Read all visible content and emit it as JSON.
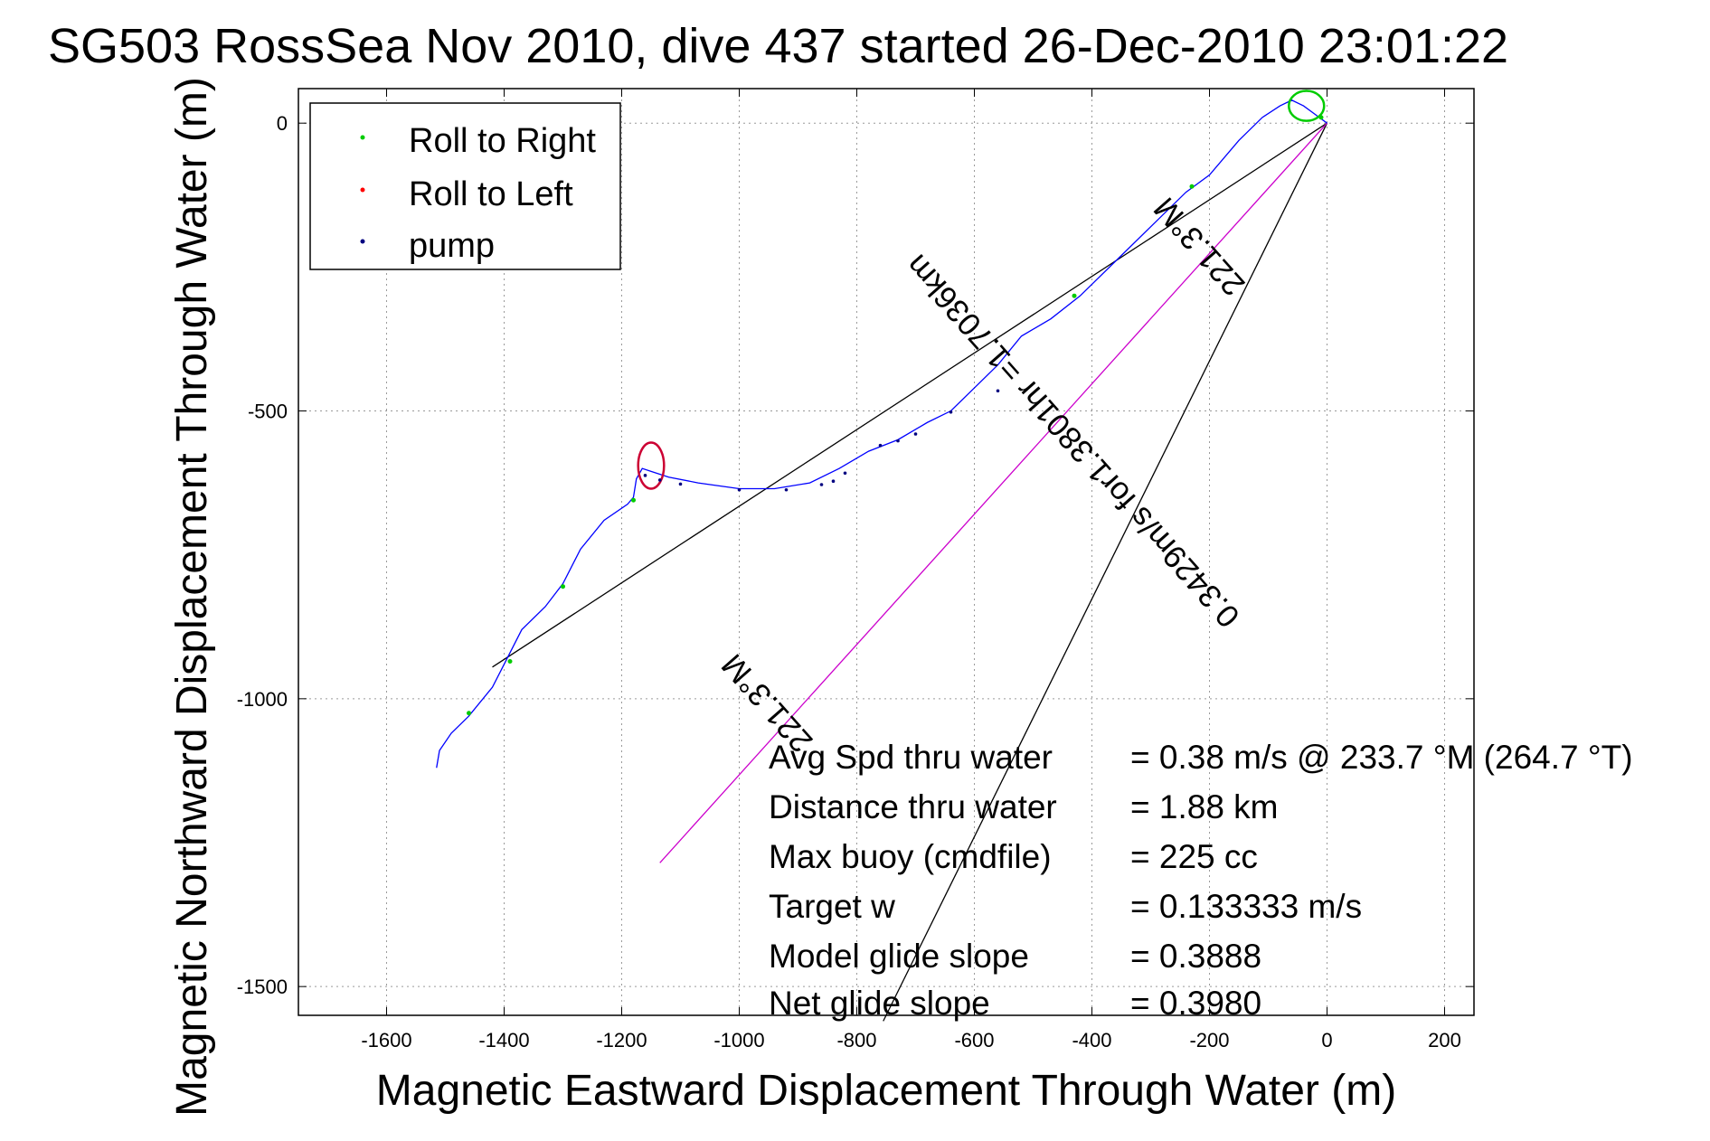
{
  "title": "SG503 RossSea Nov 2010, dive 437 started 26-Dec-2010 23:01:22",
  "chart_data": {
    "type": "line",
    "xlabel": "Magnetic Eastward Displacement Through Water (m)",
    "ylabel": "Magnetic Northward Displacement Through Water (m)",
    "xlim": [
      -1750,
      250
    ],
    "ylim": [
      -1550,
      60
    ],
    "xticks": [
      -1600,
      -1400,
      -1200,
      -1000,
      -800,
      -600,
      -400,
      -200,
      0,
      200
    ],
    "yticks": [
      0,
      -500,
      -1000,
      -1500
    ],
    "grid": true,
    "legend_position": "top-left",
    "legend": [
      {
        "label": "Roll to Right",
        "color": "#00cc00"
      },
      {
        "label": "Roll to Left",
        "color": "#ff0000"
      },
      {
        "label": "pump",
        "color": "#000080"
      }
    ],
    "track": {
      "color": "#0000ff",
      "points": [
        [
          0,
          0
        ],
        [
          -20,
          15
        ],
        [
          -40,
          30
        ],
        [
          -60,
          40
        ],
        [
          -80,
          30
        ],
        [
          -110,
          10
        ],
        [
          -150,
          -30
        ],
        [
          -200,
          -90
        ],
        [
          -240,
          -120
        ],
        [
          -300,
          -180
        ],
        [
          -350,
          -230
        ],
        [
          -420,
          -300
        ],
        [
          -470,
          -340
        ],
        [
          -520,
          -370
        ],
        [
          -560,
          -420
        ],
        [
          -600,
          -460
        ],
        [
          -640,
          -500
        ],
        [
          -680,
          -520
        ],
        [
          -730,
          -550
        ],
        [
          -780,
          -570
        ],
        [
          -830,
          -600
        ],
        [
          -880,
          -625
        ],
        [
          -940,
          -635
        ],
        [
          -1000,
          -635
        ],
        [
          -1070,
          -625
        ],
        [
          -1120,
          -615
        ],
        [
          -1150,
          -605
        ],
        [
          -1165,
          -600
        ],
        [
          -1175,
          -618
        ],
        [
          -1180,
          -650
        ],
        [
          -1190,
          -662
        ],
        [
          -1230,
          -690
        ],
        [
          -1270,
          -740
        ],
        [
          -1300,
          -800
        ],
        [
          -1330,
          -840
        ],
        [
          -1370,
          -880
        ],
        [
          -1400,
          -940
        ],
        [
          -1420,
          -980
        ],
        [
          -1460,
          -1030
        ],
        [
          -1490,
          -1060
        ],
        [
          -1510,
          -1090
        ],
        [
          -1515,
          -1120
        ]
      ],
      "right_loop": {
        "center": [
          -35,
          30
        ],
        "radius_x": 30,
        "radius_y": 26
      },
      "left_loop": {
        "center": [
          -1150,
          -595
        ],
        "radius_x": 22,
        "radius_y": 40
      }
    },
    "roll_right_points": [
      [
        -10,
        10
      ],
      [
        -230,
        -110
      ],
      [
        -430,
        -300
      ],
      [
        -1180,
        -655
      ],
      [
        -1300,
        -805
      ],
      [
        -1390,
        -935
      ],
      [
        -1460,
        -1025
      ]
    ],
    "pump_points": [
      [
        -1160,
        -612
      ],
      [
        -1135,
        -620
      ],
      [
        -1100,
        -627
      ],
      [
        -1000,
        -637
      ],
      [
        -920,
        -637
      ],
      [
        -860,
        -628
      ],
      [
        -840,
        -622
      ],
      [
        -820,
        -608
      ],
      [
        -760,
        -560
      ],
      [
        -730,
        -552
      ],
      [
        -700,
        -540
      ],
      [
        -640,
        -502
      ],
      [
        -560,
        -465
      ]
    ],
    "gc_line": {
      "from": [
        0,
        0
      ],
      "to": [
        -1420,
        -945
      ]
    },
    "heading_line": {
      "from": [
        0,
        0
      ],
      "to": [
        -1135,
        -1285
      ],
      "color": "#cc00cc"
    },
    "wedge_line": {
      "from": [
        0,
        0
      ],
      "to": [
        -755,
        -1560
      ]
    },
    "annotations": {
      "heading_top": "221.3°M",
      "speed_line": "0.3429m/s for1.3801hr =1.7036km",
      "heading_bottom": "221.3°M"
    },
    "stats": [
      {
        "label": "Avg Spd thru water",
        "value": "=  0.38 m/s @ 233.7 °M (264.7 °T)"
      },
      {
        "label": "Distance thru water",
        "value": "=  1.88 km"
      },
      {
        "label": "Max buoy (cmdfile)",
        "value": "= 225 cc"
      },
      {
        "label": "Target w",
        "value": "= 0.133333 m/s"
      },
      {
        "label": "Model glide slope",
        "value": "= 0.3888"
      },
      {
        "label": "Net glide slope",
        "value": "= 0.3980"
      }
    ]
  }
}
